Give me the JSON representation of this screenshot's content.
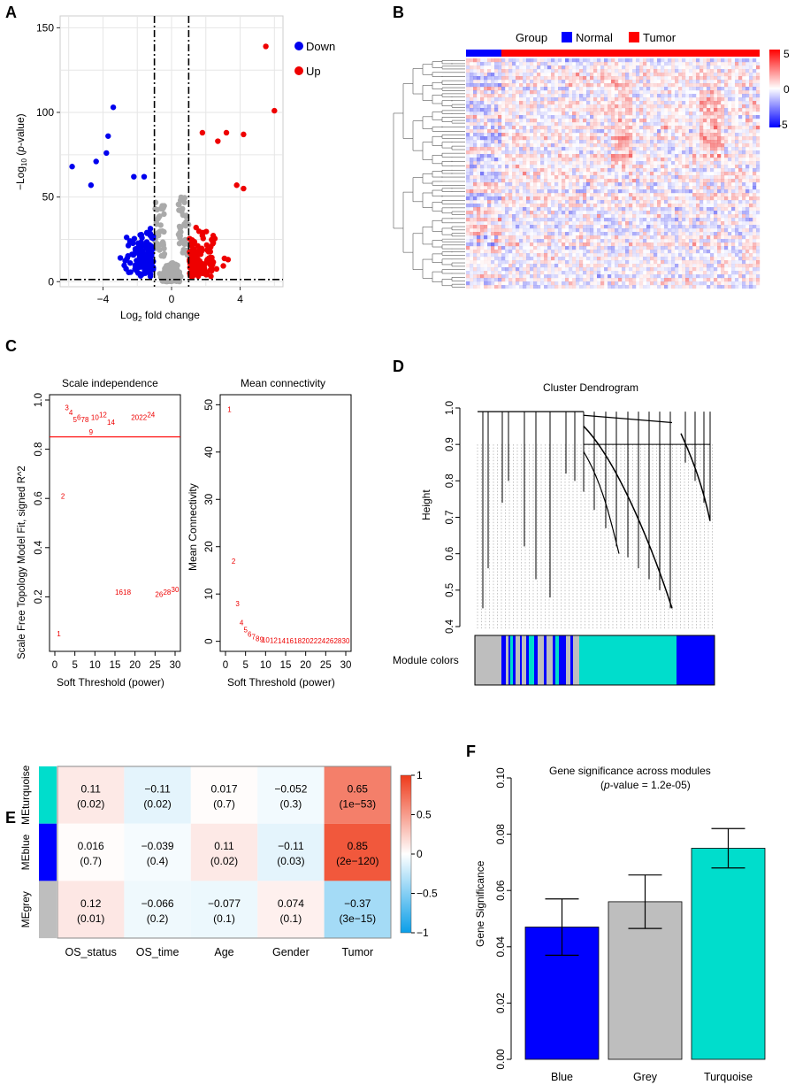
{
  "colors": {
    "down": "#0000ee",
    "up": "#ee0000",
    "ns": "#aaaaaa",
    "blue": "#0000ff",
    "grey": "#bebebe",
    "turquoise": "#00ddcc",
    "heat_pos": "#ee4a2a",
    "heat_neg": "#0aa5ee",
    "r2_line": "#ff0000"
  },
  "panels": {
    "a": "A",
    "b": "B",
    "c": "C",
    "d": "D",
    "e": "E",
    "f": "F"
  },
  "chart_data": [
    {
      "id": "A",
      "type": "scatter",
      "title": "",
      "xlabel": "Log2 fold change",
      "ylabel": "-Log10 (p-value)",
      "xlim": [
        -6.5,
        6.5
      ],
      "ylim": [
        -3,
        157
      ],
      "xticks": [
        "-4",
        "0",
        "4"
      ],
      "yticks": [
        "0",
        "50",
        "100",
        "150"
      ],
      "thresholds": {
        "logfc": [
          -1,
          1
        ],
        "p_line": 1.3
      },
      "legend": [
        {
          "label": "Down",
          "color": "#0000ee"
        },
        {
          "label": "Up",
          "color": "#ee0000"
        }
      ],
      "up_highlight": [
        [
          5.5,
          139
        ],
        [
          6,
          101
        ],
        [
          3.2,
          88
        ],
        [
          4.2,
          87
        ],
        [
          1.8,
          88
        ],
        [
          3.8,
          57
        ],
        [
          4.2,
          55
        ],
        [
          2.7,
          83
        ]
      ],
      "down_highlight": [
        [
          -3.4,
          103
        ],
        [
          -3.7,
          86
        ],
        [
          -5.8,
          68
        ],
        [
          -3.8,
          76
        ],
        [
          -4.4,
          71
        ],
        [
          -4.7,
          57
        ],
        [
          -2.2,
          62
        ],
        [
          -1.6,
          62
        ]
      ]
    },
    {
      "id": "B",
      "type": "heatmap",
      "legend_title": "Group",
      "groups": [
        {
          "label": "Normal",
          "color": "#0000ff"
        },
        {
          "label": "Tumor",
          "color": "#ff0000"
        }
      ],
      "colorbar_ticks": [
        "5",
        "0",
        "-5"
      ],
      "colorbar_range": [
        -5,
        5
      ]
    },
    {
      "id": "C1",
      "type": "scatter",
      "title": "Scale independence",
      "xlabel": "Soft Threshold (power)",
      "ylabel": "Scale Free Topology Model Fit, signed R^2",
      "xlim": [
        0,
        31
      ],
      "ylim": [
        0,
        1.0
      ],
      "xticks": [
        "0",
        "5",
        "10",
        "15",
        "20",
        "25",
        "30"
      ],
      "yticks": [
        "0.2",
        "0.4",
        "0.6",
        "0.8",
        "1.0"
      ],
      "cutoff": 0.85,
      "powers": [
        "1",
        "2",
        "3",
        "4",
        "5",
        "6",
        "7",
        "8",
        "9",
        "10",
        "12",
        "14",
        "16",
        "18",
        "20",
        "22",
        "24",
        "26",
        "28",
        "30"
      ],
      "values": [
        0.05,
        0.61,
        0.97,
        0.95,
        0.92,
        0.93,
        0.92,
        0.92,
        0.87,
        0.93,
        0.94,
        0.91,
        0.22,
        0.22,
        0.93,
        0.93,
        0.94,
        0.21,
        0.22,
        0.23
      ]
    },
    {
      "id": "C2",
      "type": "scatter",
      "title": "Mean connectivity",
      "xlabel": "Soft Threshold (power)",
      "ylabel": "Mean Connectivity",
      "xlim": [
        0,
        31
      ],
      "ylim": [
        -1,
        51
      ],
      "xticks": [
        "0",
        "5",
        "10",
        "15",
        "20",
        "25",
        "30"
      ],
      "yticks": [
        "0",
        "10",
        "20",
        "30",
        "40",
        "50"
      ],
      "powers": [
        "1",
        "2",
        "3",
        "4",
        "5",
        "6",
        "7",
        "8",
        "9",
        "10",
        "12",
        "14",
        "16",
        "18",
        "20",
        "22",
        "24",
        "26",
        "28",
        "30"
      ],
      "values": [
        49,
        17,
        8,
        4,
        2.5,
        1.5,
        1.0,
        0.6,
        0.4,
        0.3,
        0.2,
        0.1,
        0.1,
        0.1,
        0.1,
        0.1,
        0.1,
        0.1,
        0.1,
        0.1
      ]
    },
    {
      "id": "D",
      "type": "dendrogram",
      "title": "Cluster Dendrogram",
      "ylabel": "Height",
      "ylim": [
        0.4,
        1.0
      ],
      "yticks": [
        "0.4",
        "0.5",
        "0.6",
        "0.7",
        "0.8",
        "0.9",
        "1.0"
      ],
      "module_label": "Module colors"
    },
    {
      "id": "E",
      "type": "heatmap",
      "rows": [
        "MEturquoise",
        "MEblue",
        "MEgrey"
      ],
      "row_colors": [
        "#00ddcc",
        "#0000ff",
        "#bebebe"
      ],
      "cols": [
        "OS_status",
        "OS_time",
        "Age",
        "Gender",
        "Tumor"
      ],
      "values": [
        [
          0.11,
          -0.11,
          0.017,
          -0.052,
          0.65
        ],
        [
          0.016,
          -0.039,
          0.11,
          -0.11,
          0.85
        ],
        [
          0.12,
          -0.066,
          -0.077,
          0.074,
          -0.37
        ]
      ],
      "labels": [
        [
          "0.11",
          "-0.11",
          "0.017",
          "-0.052",
          "0.65"
        ],
        [
          "0.016",
          "-0.039",
          "0.11",
          "-0.11",
          "0.85"
        ],
        [
          "0.12",
          "-0.066",
          "-0.077",
          "0.074",
          "-0.37"
        ]
      ],
      "pvalues": [
        [
          "(0.02)",
          "(0.02)",
          "(0.7)",
          "(0.3)",
          "(1e-53)"
        ],
        [
          "(0.7)",
          "(0.4)",
          "(0.02)",
          "(0.03)",
          "(2e-120)"
        ],
        [
          "(0.01)",
          "(0.2)",
          "(0.1)",
          "(0.1)",
          "(3e-15)"
        ]
      ],
      "colorbar_ticks": [
        "1",
        "0.5",
        "0",
        "-0.5",
        "-1"
      ],
      "colorbar_range": [
        -1,
        1
      ]
    },
    {
      "id": "F",
      "type": "bar",
      "title": "Gene significance across modules",
      "subtitle_prefix": "(",
      "subtitle_italic": "p",
      "subtitle_rest": "-value = 1.2e-05)",
      "ylabel": "Gene Significance",
      "categories": [
        "Blue",
        "Grey",
        "Turquoise"
      ],
      "values": [
        0.047,
        0.056,
        0.075
      ],
      "errors": [
        0.01,
        0.0095,
        0.007
      ],
      "bar_colors": [
        "#0000ff",
        "#bebebe",
        "#00ddcc"
      ],
      "ylim": [
        0,
        0.1
      ],
      "yticks": [
        "0.00",
        "0.02",
        "0.04",
        "0.06",
        "0.08",
        "0.10"
      ]
    }
  ]
}
